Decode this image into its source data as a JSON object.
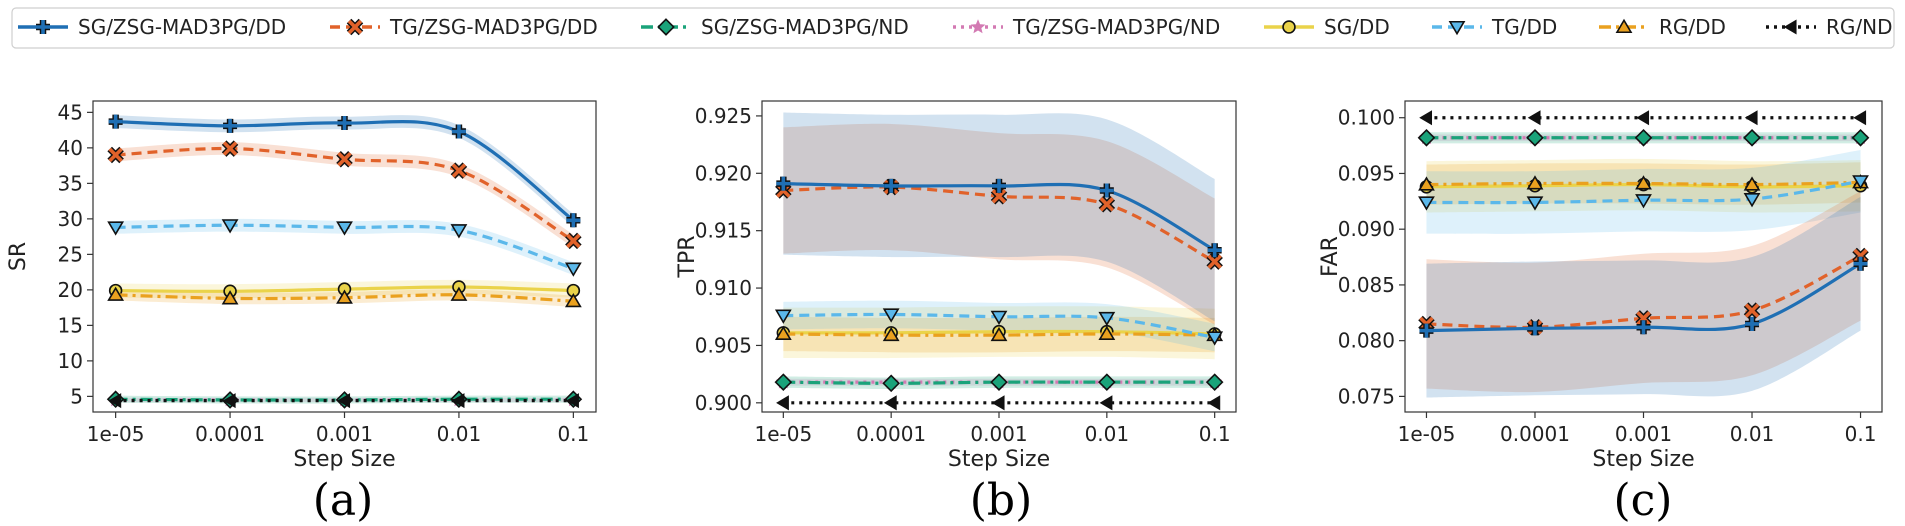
{
  "legend": {
    "items": [
      {
        "label": "SG/ZSG-MAD3PG/DD",
        "color": "#1f6fb4",
        "marker": "plus",
        "dash": "solid"
      },
      {
        "label": "TG/ZSG-MAD3PG/DD",
        "color": "#e1622a",
        "marker": "x",
        "dash": "dashed"
      },
      {
        "label": "SG/ZSG-MAD3PG/ND",
        "color": "#1aa37a",
        "marker": "diamond",
        "dash": "dashdot"
      },
      {
        "label": "TG/ZSG-MAD3PG/ND",
        "color": "#d37ab3",
        "marker": "star",
        "dash": "dotted"
      },
      {
        "label": "SG/DD",
        "color": "#ead34a",
        "marker": "circle",
        "dash": "solid"
      },
      {
        "label": "TG/DD",
        "color": "#5bb8ea",
        "marker": "triangle-down",
        "dash": "dashed"
      },
      {
        "label": "RG/DD",
        "color": "#eaa11f",
        "marker": "triangle-up",
        "dash": "dashdot"
      },
      {
        "label": "RG/ND",
        "color": "#111111",
        "marker": "triangle-left",
        "dash": "dotted"
      }
    ]
  },
  "chart_data": [
    {
      "type": "line",
      "caption": "(a)",
      "xlabel": "Step Size",
      "ylabel": "SR",
      "categories": [
        "1e-05",
        "0.0001",
        "0.001",
        "0.01",
        "0.1"
      ],
      "ylim": [
        2.8,
        46.6
      ],
      "yticks": [
        5,
        10,
        15,
        20,
        25,
        30,
        35,
        40,
        45
      ],
      "tick_labels": [
        "5",
        "10",
        "15",
        "20",
        "25",
        "30",
        "35",
        "40",
        "45"
      ],
      "series": [
        {
          "name": "SG/ZSG-MAD3PG/DD",
          "values": [
            43.7,
            43.1,
            43.5,
            42.3,
            29.8
          ],
          "band": 0.9
        },
        {
          "name": "TG/ZSG-MAD3PG/DD",
          "values": [
            39.0,
            39.9,
            38.4,
            36.8,
            26.9
          ],
          "band": 0.9
        },
        {
          "name": "SG/ZSG-MAD3PG/ND",
          "values": [
            4.6,
            4.5,
            4.5,
            4.6,
            4.6
          ],
          "band": 0.5
        },
        {
          "name": "TG/ZSG-MAD3PG/ND",
          "values": [
            4.5,
            4.5,
            4.5,
            4.5,
            4.5
          ],
          "band": 0.3
        },
        {
          "name": "SG/DD",
          "values": [
            19.9,
            19.8,
            20.1,
            20.4,
            19.9
          ],
          "band": 1.0
        },
        {
          "name": "TG/DD",
          "values": [
            28.8,
            29.1,
            28.8,
            28.4,
            23.0
          ],
          "band": 0.9
        },
        {
          "name": "RG/DD",
          "values": [
            19.3,
            18.8,
            18.9,
            19.3,
            18.4
          ],
          "band": 0.8
        },
        {
          "name": "RG/ND",
          "values": [
            4.4,
            4.4,
            4.4,
            4.4,
            4.4
          ],
          "band": 0
        }
      ]
    },
    {
      "type": "line",
      "caption": "(b)",
      "xlabel": "Step Size",
      "ylabel": "TPR",
      "categories": [
        "1e-05",
        "0.0001",
        "0.001",
        "0.01",
        "0.1"
      ],
      "ylim": [
        0.8992,
        0.9263
      ],
      "yticks": [
        0.9,
        0.905,
        0.91,
        0.915,
        0.92,
        0.925
      ],
      "tick_labels": [
        "0.900",
        "0.905",
        "0.910",
        "0.915",
        "0.920",
        "0.925"
      ],
      "series": [
        {
          "name": "SG/ZSG-MAD3PG/DD",
          "values": [
            0.9191,
            0.9189,
            0.9189,
            0.9185,
            0.9133
          ],
          "band": 0.0062
        },
        {
          "name": "TG/ZSG-MAD3PG/DD",
          "values": [
            0.9185,
            0.9188,
            0.918,
            0.9173,
            0.9123
          ],
          "band": 0.0055
        },
        {
          "name": "SG/ZSG-MAD3PG/ND",
          "values": [
            0.9018,
            0.9017,
            0.9018,
            0.9018,
            0.9018
          ],
          "band": 0.0005
        },
        {
          "name": "TG/ZSG-MAD3PG/ND",
          "values": [
            0.9018,
            0.9018,
            0.9018,
            0.9018,
            0.9018
          ],
          "band": 0.0003
        },
        {
          "name": "SG/DD",
          "values": [
            0.9061,
            0.9061,
            0.9062,
            0.9062,
            0.906
          ],
          "band": 0.0022
        },
        {
          "name": "TG/DD",
          "values": [
            0.9076,
            0.9077,
            0.9075,
            0.9074,
            0.9057
          ],
          "band": 0.0012
        },
        {
          "name": "RG/DD",
          "values": [
            0.906,
            0.9059,
            0.9059,
            0.906,
            0.9059
          ],
          "band": 0.0015
        },
        {
          "name": "RG/ND",
          "values": [
            0.9,
            0.9,
            0.9,
            0.9,
            0.9
          ],
          "band": 0
        }
      ]
    },
    {
      "type": "line",
      "caption": "(c)",
      "xlabel": "Step Size",
      "ylabel": "FAR",
      "categories": [
        "1e-05",
        "0.0001",
        "0.001",
        "0.01",
        "0.1"
      ],
      "ylim": [
        0.0736,
        0.1015
      ],
      "yticks": [
        0.075,
        0.08,
        0.085,
        0.09,
        0.095,
        0.1
      ],
      "tick_labels": [
        "0.075",
        "0.080",
        "0.085",
        "0.090",
        "0.095",
        "0.100"
      ],
      "series": [
        {
          "name": "SG/ZSG-MAD3PG/DD",
          "values": [
            0.0809,
            0.0811,
            0.0812,
            0.0815,
            0.0869
          ],
          "band": 0.006
        },
        {
          "name": "TG/ZSG-MAD3PG/DD",
          "values": [
            0.0815,
            0.0812,
            0.082,
            0.0827,
            0.0876
          ],
          "band": 0.0058
        },
        {
          "name": "SG/ZSG-MAD3PG/ND",
          "values": [
            0.0982,
            0.0982,
            0.0982,
            0.0982,
            0.0982
          ],
          "band": 0.0005
        },
        {
          "name": "TG/ZSG-MAD3PG/ND",
          "values": [
            0.0982,
            0.0982,
            0.0982,
            0.0982,
            0.0982
          ],
          "band": 0.0003
        },
        {
          "name": "SG/DD",
          "values": [
            0.0938,
            0.0939,
            0.094,
            0.0938,
            0.0939
          ],
          "band": 0.0023
        },
        {
          "name": "TG/DD",
          "values": [
            0.0924,
            0.0924,
            0.0926,
            0.0927,
            0.0943
          ],
          "band": 0.0028
        },
        {
          "name": "RG/DD",
          "values": [
            0.094,
            0.0941,
            0.0941,
            0.094,
            0.0942
          ],
          "band": 0.0018
        },
        {
          "name": "RG/ND",
          "values": [
            0.1,
            0.1,
            0.1,
            0.1,
            0.1
          ],
          "band": 0
        }
      ]
    }
  ]
}
